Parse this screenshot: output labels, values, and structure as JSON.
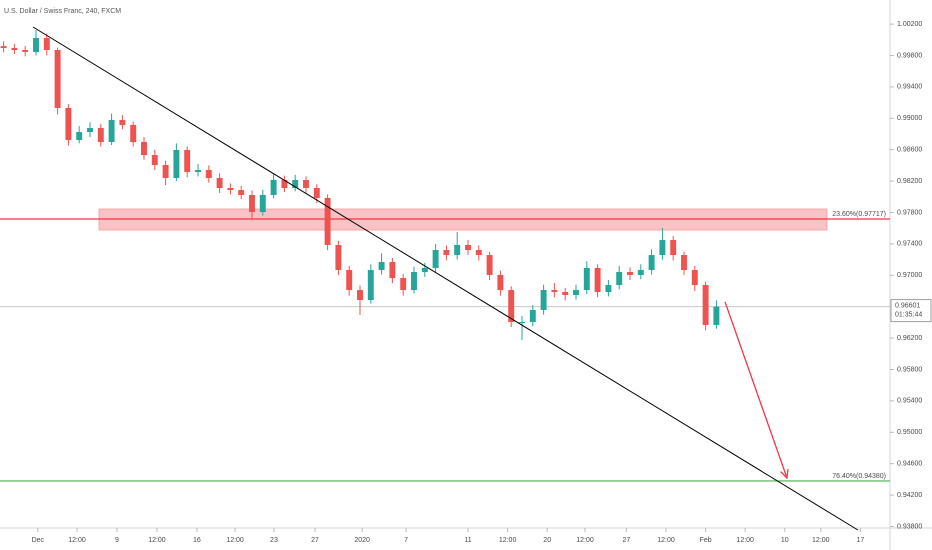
{
  "chart_data": {
    "type": "candlestick",
    "title": "U.S. Dollar / Swiss Franc, 240, FXCM",
    "up_color": "#26a69a",
    "down_color": "#ef5350",
    "xlim": [
      0,
      250
    ],
    "ylim": [
      0.93755,
      1.00507
    ],
    "xticks": [
      {
        "value": 10.5,
        "label": "Dec"
      },
      {
        "value": 21.4,
        "label": "12:00"
      },
      {
        "value": 32.5,
        "label": "9"
      },
      {
        "value": 43.6,
        "label": "12:00"
      },
      {
        "value": 54.7,
        "label": "16"
      },
      {
        "value": 65.3,
        "label": "12:00"
      },
      {
        "value": 76.1,
        "label": "23"
      },
      {
        "value": 87.5,
        "label": "27"
      },
      {
        "value": 100.6,
        "label": "2020"
      },
      {
        "value": 112.8,
        "label": "7"
      },
      {
        "value": 130,
        "label": "11"
      },
      {
        "value": 141,
        "label": "12:00"
      },
      {
        "value": 152,
        "label": "20"
      },
      {
        "value": 162.5,
        "label": "12:00"
      },
      {
        "value": 174,
        "label": "27"
      },
      {
        "value": 185,
        "label": "12:00"
      },
      {
        "value": 196,
        "label": "Feb"
      },
      {
        "value": 207,
        "label": "12:00"
      },
      {
        "value": 218,
        "label": "10"
      },
      {
        "value": 228,
        "label": "12:00"
      },
      {
        "value": 239,
        "label": "17"
      }
    ],
    "yticks": [
      {
        "value": 0.938,
        "label": "0.93800"
      },
      {
        "value": 0.942,
        "label": "0.94200"
      },
      {
        "value": 0.946,
        "label": "0.94600"
      },
      {
        "value": 0.95,
        "label": "0.95000"
      },
      {
        "value": 0.954,
        "label": "0.95400"
      },
      {
        "value": 0.958,
        "label": "0.95800"
      },
      {
        "value": 0.962,
        "label": "0.96200"
      },
      {
        "value": 0.97,
        "label": "0.97000"
      },
      {
        "value": 0.974,
        "label": "0.97400"
      },
      {
        "value": 0.978,
        "label": "0.97800"
      },
      {
        "value": 0.982,
        "label": "0.98200"
      },
      {
        "value": 0.986,
        "label": "0.98600"
      },
      {
        "value": 0.99,
        "label": "0.99000"
      },
      {
        "value": 0.994,
        "label": "0.99400"
      },
      {
        "value": 0.998,
        "label": "0.99800"
      },
      {
        "value": 1.002,
        "label": "1.00200"
      }
    ],
    "x": [
      1,
      4,
      7,
      10,
      13,
      16,
      19,
      22,
      25,
      28,
      31,
      34,
      37,
      40,
      43,
      46,
      49,
      52,
      55,
      58,
      61,
      64,
      67,
      70,
      73,
      76,
      79,
      82,
      85,
      88,
      91,
      94,
      97,
      100,
      103,
      106,
      109,
      112,
      115,
      118,
      121,
      124,
      127,
      130,
      133,
      136,
      139,
      142,
      145,
      148,
      151,
      154,
      157,
      160,
      163,
      166,
      169,
      172,
      175,
      178,
      181,
      184,
      187,
      190,
      193,
      196,
      199
    ],
    "open": [
      0.9992,
      0.99895,
      0.9987,
      0.99845,
      1.00023,
      0.9987,
      0.99131,
      0.98723,
      0.98825,
      0.98876,
      0.98698,
      0.98978,
      0.98915,
      0.98698,
      0.98532,
      0.98405,
      0.98239,
      0.98596,
      0.98316,
      0.98341,
      0.98239,
      0.98112,
      0.98086,
      0.98023,
      0.97806,
      0.98023,
      0.98214,
      0.98112,
      0.98214,
      0.98112,
      0.97985,
      0.97386,
      0.97067,
      0.96812,
      0.96685,
      0.97067,
      0.97169,
      0.96965,
      0.96812,
      0.97042,
      0.97093,
      0.97322,
      0.97258,
      0.97386,
      0.97322,
      0.97258,
      0.97004,
      0.96812,
      0.96405,
      0.96405,
      0.96558,
      0.96812,
      0.96787,
      0.96749,
      0.96812,
      0.97093,
      0.96787,
      0.96876,
      0.97042,
      0.97004,
      0.97067,
      0.97258,
      0.97449,
      0.97258,
      0.97067,
      0.96876,
      0.96367
    ],
    "high": [
      0.9998,
      0.9995,
      0.9992,
      1.00125,
      1.0008,
      0.999,
      0.9918,
      0.989,
      0.9895,
      0.9893,
      0.9906,
      0.9904,
      0.9896,
      0.9876,
      0.986,
      0.9846,
      0.9868,
      0.9864,
      0.9842,
      0.984,
      0.983,
      0.9817,
      0.9814,
      0.9808,
      0.9809,
      0.9829,
      0.9827,
      0.9828,
      0.9826,
      0.9816,
      0.9803,
      0.9744,
      0.9712,
      0.9687,
      0.9714,
      0.9728,
      0.9722,
      0.9702,
      0.9711,
      0.9716,
      0.974,
      0.9738,
      0.97551,
      0.9745,
      0.9738,
      0.973,
      0.9706,
      0.9686,
      0.9648,
      0.9662,
      0.9688,
      0.969,
      0.9684,
      0.9688,
      0.9718,
      0.9714,
      0.9694,
      0.9712,
      0.971,
      0.9714,
      0.9733,
      0.97602,
      0.975,
      0.973,
      0.9712,
      0.9692,
      0.9668
    ],
    "low": [
      0.9984,
      0.9982,
      0.9979,
      0.998,
      0.998,
      0.9905,
      0.9865,
      0.9868,
      0.9876,
      0.9864,
      0.9866,
      0.9886,
      0.9864,
      0.9847,
      0.9834,
      0.9815,
      0.982,
      0.9825,
      0.9826,
      0.9818,
      0.9805,
      0.9803,
      0.9797,
      0.977,
      0.9776,
      0.9798,
      0.9806,
      0.9807,
      0.9805,
      0.9792,
      0.9732,
      0.97,
      0.9674,
      0.96494,
      0.9664,
      0.9701,
      0.969,
      0.9674,
      0.9677,
      0.9698,
      0.9704,
      0.9719,
      0.972,
      0.9726,
      0.9719,
      0.9694,
      0.9674,
      0.9634,
      0.96175,
      0.9635,
      0.965,
      0.9672,
      0.9668,
      0.9669,
      0.9676,
      0.9672,
      0.9673,
      0.9682,
      0.9694,
      0.9695,
      0.9701,
      0.972,
      0.9719,
      0.97,
      0.968,
      0.963,
      0.9632
    ],
    "close": [
      0.99895,
      0.9987,
      0.99845,
      1.00023,
      0.9987,
      0.99131,
      0.98723,
      0.98825,
      0.98876,
      0.98698,
      0.98978,
      0.98915,
      0.98698,
      0.98532,
      0.98405,
      0.98239,
      0.98596,
      0.98316,
      0.98341,
      0.98239,
      0.98112,
      0.98086,
      0.98023,
      0.97806,
      0.98023,
      0.98214,
      0.98112,
      0.98214,
      0.98112,
      0.97985,
      0.97386,
      0.97067,
      0.96812,
      0.96685,
      0.97067,
      0.97169,
      0.96965,
      0.96812,
      0.97042,
      0.97093,
      0.97322,
      0.97258,
      0.97386,
      0.97322,
      0.97258,
      0.97004,
      0.96812,
      0.96405,
      0.96405,
      0.96558,
      0.96812,
      0.96787,
      0.96749,
      0.96812,
      0.97093,
      0.96787,
      0.96876,
      0.97042,
      0.97004,
      0.97067,
      0.97258,
      0.97449,
      0.97258,
      0.97067,
      0.96876,
      0.96367,
      0.96601
    ],
    "last_price_label": "0.96601",
    "countdown": "01:35:44",
    "levels": [
      {
        "value": 0.97717,
        "label": "23.60%(0.97717)",
        "color": "#f23645"
      },
      {
        "value": 0.9438,
        "label": "76.40%(0.94380)",
        "color": "#4caf50"
      }
    ],
    "zone": {
      "x1": 27.5,
      "x2": 229.7,
      "y1": 0.97844,
      "y2": 0.97577,
      "color": "#f7a8ad"
    },
    "trend_line": {
      "x1": 9.17,
      "x2": 238.3,
      "y1": 1.00163,
      "y2": 0.93755,
      "color": "#000000"
    },
    "arrow": {
      "x1": 201.4,
      "x2": 218.6,
      "y1": 0.9666,
      "y2": 0.94418,
      "color": "#f23645"
    }
  }
}
